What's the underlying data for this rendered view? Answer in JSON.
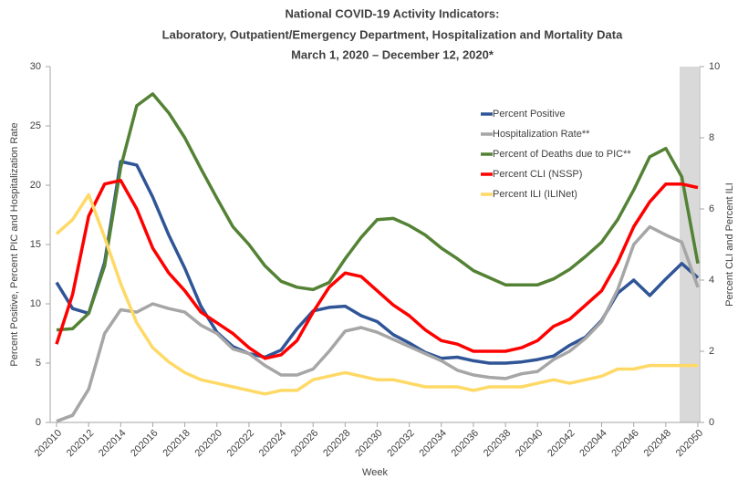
{
  "chart_data": {
    "type": "line",
    "title": [
      "National COVID-19 Activity Indicators:",
      "Laboratory, Outpatient/Emergency Department, Hospitalization and Mortality Data",
      "March 1, 2020 – December 12, 2020*"
    ],
    "x_label": "Week",
    "y_label": "Percent Positive, Percent PIC and Hospitalization Rate",
    "y2_label": "Percent CLI and Percent ILI",
    "categories": [
      "202010",
      null,
      "202012",
      null,
      "202014",
      null,
      "202016",
      null,
      "202018",
      null,
      "202020",
      null,
      "202022",
      null,
      "202024",
      null,
      "202026",
      null,
      "202028",
      null,
      "202030",
      null,
      "202032",
      null,
      "202034",
      null,
      "202036",
      null,
      "202038",
      null,
      "202040",
      null,
      "202042",
      null,
      "202044",
      null,
      "202046",
      null,
      "202048",
      null,
      "202050"
    ],
    "ylim": [
      0,
      30
    ],
    "yticks": [
      0,
      5,
      10,
      15,
      20,
      25,
      30
    ],
    "y2lim": [
      0,
      10
    ],
    "y2ticks": [
      0,
      2,
      4,
      6,
      8,
      10
    ],
    "series": [
      {
        "name": "Percent Positive",
        "color": "#2f5597",
        "values": [
          11.8,
          9.6,
          9.2,
          13.5,
          22.0,
          21.7,
          19.0,
          15.8,
          13.0,
          9.8,
          7.6,
          6.4,
          5.8,
          5.5,
          6.1,
          7.9,
          9.4,
          9.7,
          9.8,
          9.0,
          8.5,
          7.4,
          6.7,
          5.9,
          5.4,
          5.5,
          5.2,
          5.0,
          5.0,
          5.1,
          5.3,
          5.6,
          6.5,
          7.2,
          8.6,
          10.9,
          12.0,
          10.7,
          12.1,
          13.4,
          12.2
        ]
      },
      {
        "name": "Hospitalization Rate**",
        "color": "#a6a6a6",
        "values": [
          0.1,
          0.6,
          2.8,
          7.5,
          9.5,
          9.3,
          10.0,
          9.6,
          9.3,
          8.2,
          7.5,
          6.2,
          5.8,
          4.8,
          4.0,
          4.0,
          4.5,
          6.0,
          7.7,
          8.0,
          7.6,
          7.0,
          6.4,
          5.8,
          5.2,
          4.4,
          4.0,
          3.8,
          3.7,
          4.1,
          4.3,
          5.3,
          6.0,
          7.1,
          8.5,
          11.2,
          15.0,
          16.5,
          15.8,
          15.2,
          11.4
        ]
      },
      {
        "name": "Percent of Deaths due to PIC**",
        "color": "#548235",
        "values": [
          7.8,
          7.9,
          9.2,
          13.2,
          21.5,
          26.7,
          27.7,
          26.1,
          24.0,
          21.4,
          18.9,
          16.5,
          15.0,
          13.2,
          11.9,
          11.4,
          11.2,
          11.8,
          13.8,
          15.6,
          17.1,
          17.2,
          16.6,
          15.8,
          14.7,
          13.8,
          12.8,
          12.2,
          11.6,
          11.6,
          11.6,
          12.1,
          12.9,
          14.0,
          15.2,
          17.1,
          19.6,
          22.4,
          23.1,
          20.7,
          13.4
        ]
      },
      {
        "name": "Percent CLI (NSSP)",
        "color": "#ff0000",
        "axis": "y2",
        "values": [
          2.2,
          3.6,
          5.8,
          6.7,
          6.8,
          6.0,
          4.9,
          4.2,
          3.7,
          3.1,
          2.8,
          2.5,
          2.1,
          1.8,
          1.9,
          2.3,
          3.1,
          3.8,
          4.2,
          4.1,
          3.7,
          3.3,
          3.0,
          2.6,
          2.3,
          2.2,
          2.0,
          2.0,
          2.0,
          2.1,
          2.3,
          2.7,
          2.9,
          3.3,
          3.7,
          4.5,
          5.5,
          6.2,
          6.7,
          6.7,
          6.6
        ]
      },
      {
        "name": "Percent ILI (ILINet)",
        "color": "#ffd966",
        "axis": "y2",
        "values": [
          5.3,
          5.7,
          6.4,
          5.2,
          3.9,
          2.8,
          2.1,
          1.7,
          1.4,
          1.2,
          1.1,
          1.0,
          0.9,
          0.8,
          0.9,
          0.9,
          1.2,
          1.3,
          1.4,
          1.3,
          1.2,
          1.2,
          1.1,
          1.0,
          1.0,
          1.0,
          0.9,
          1.0,
          1.0,
          1.0,
          1.1,
          1.2,
          1.1,
          1.2,
          1.3,
          1.5,
          1.5,
          1.6,
          1.6,
          1.6,
          1.6
        ]
      }
    ]
  }
}
